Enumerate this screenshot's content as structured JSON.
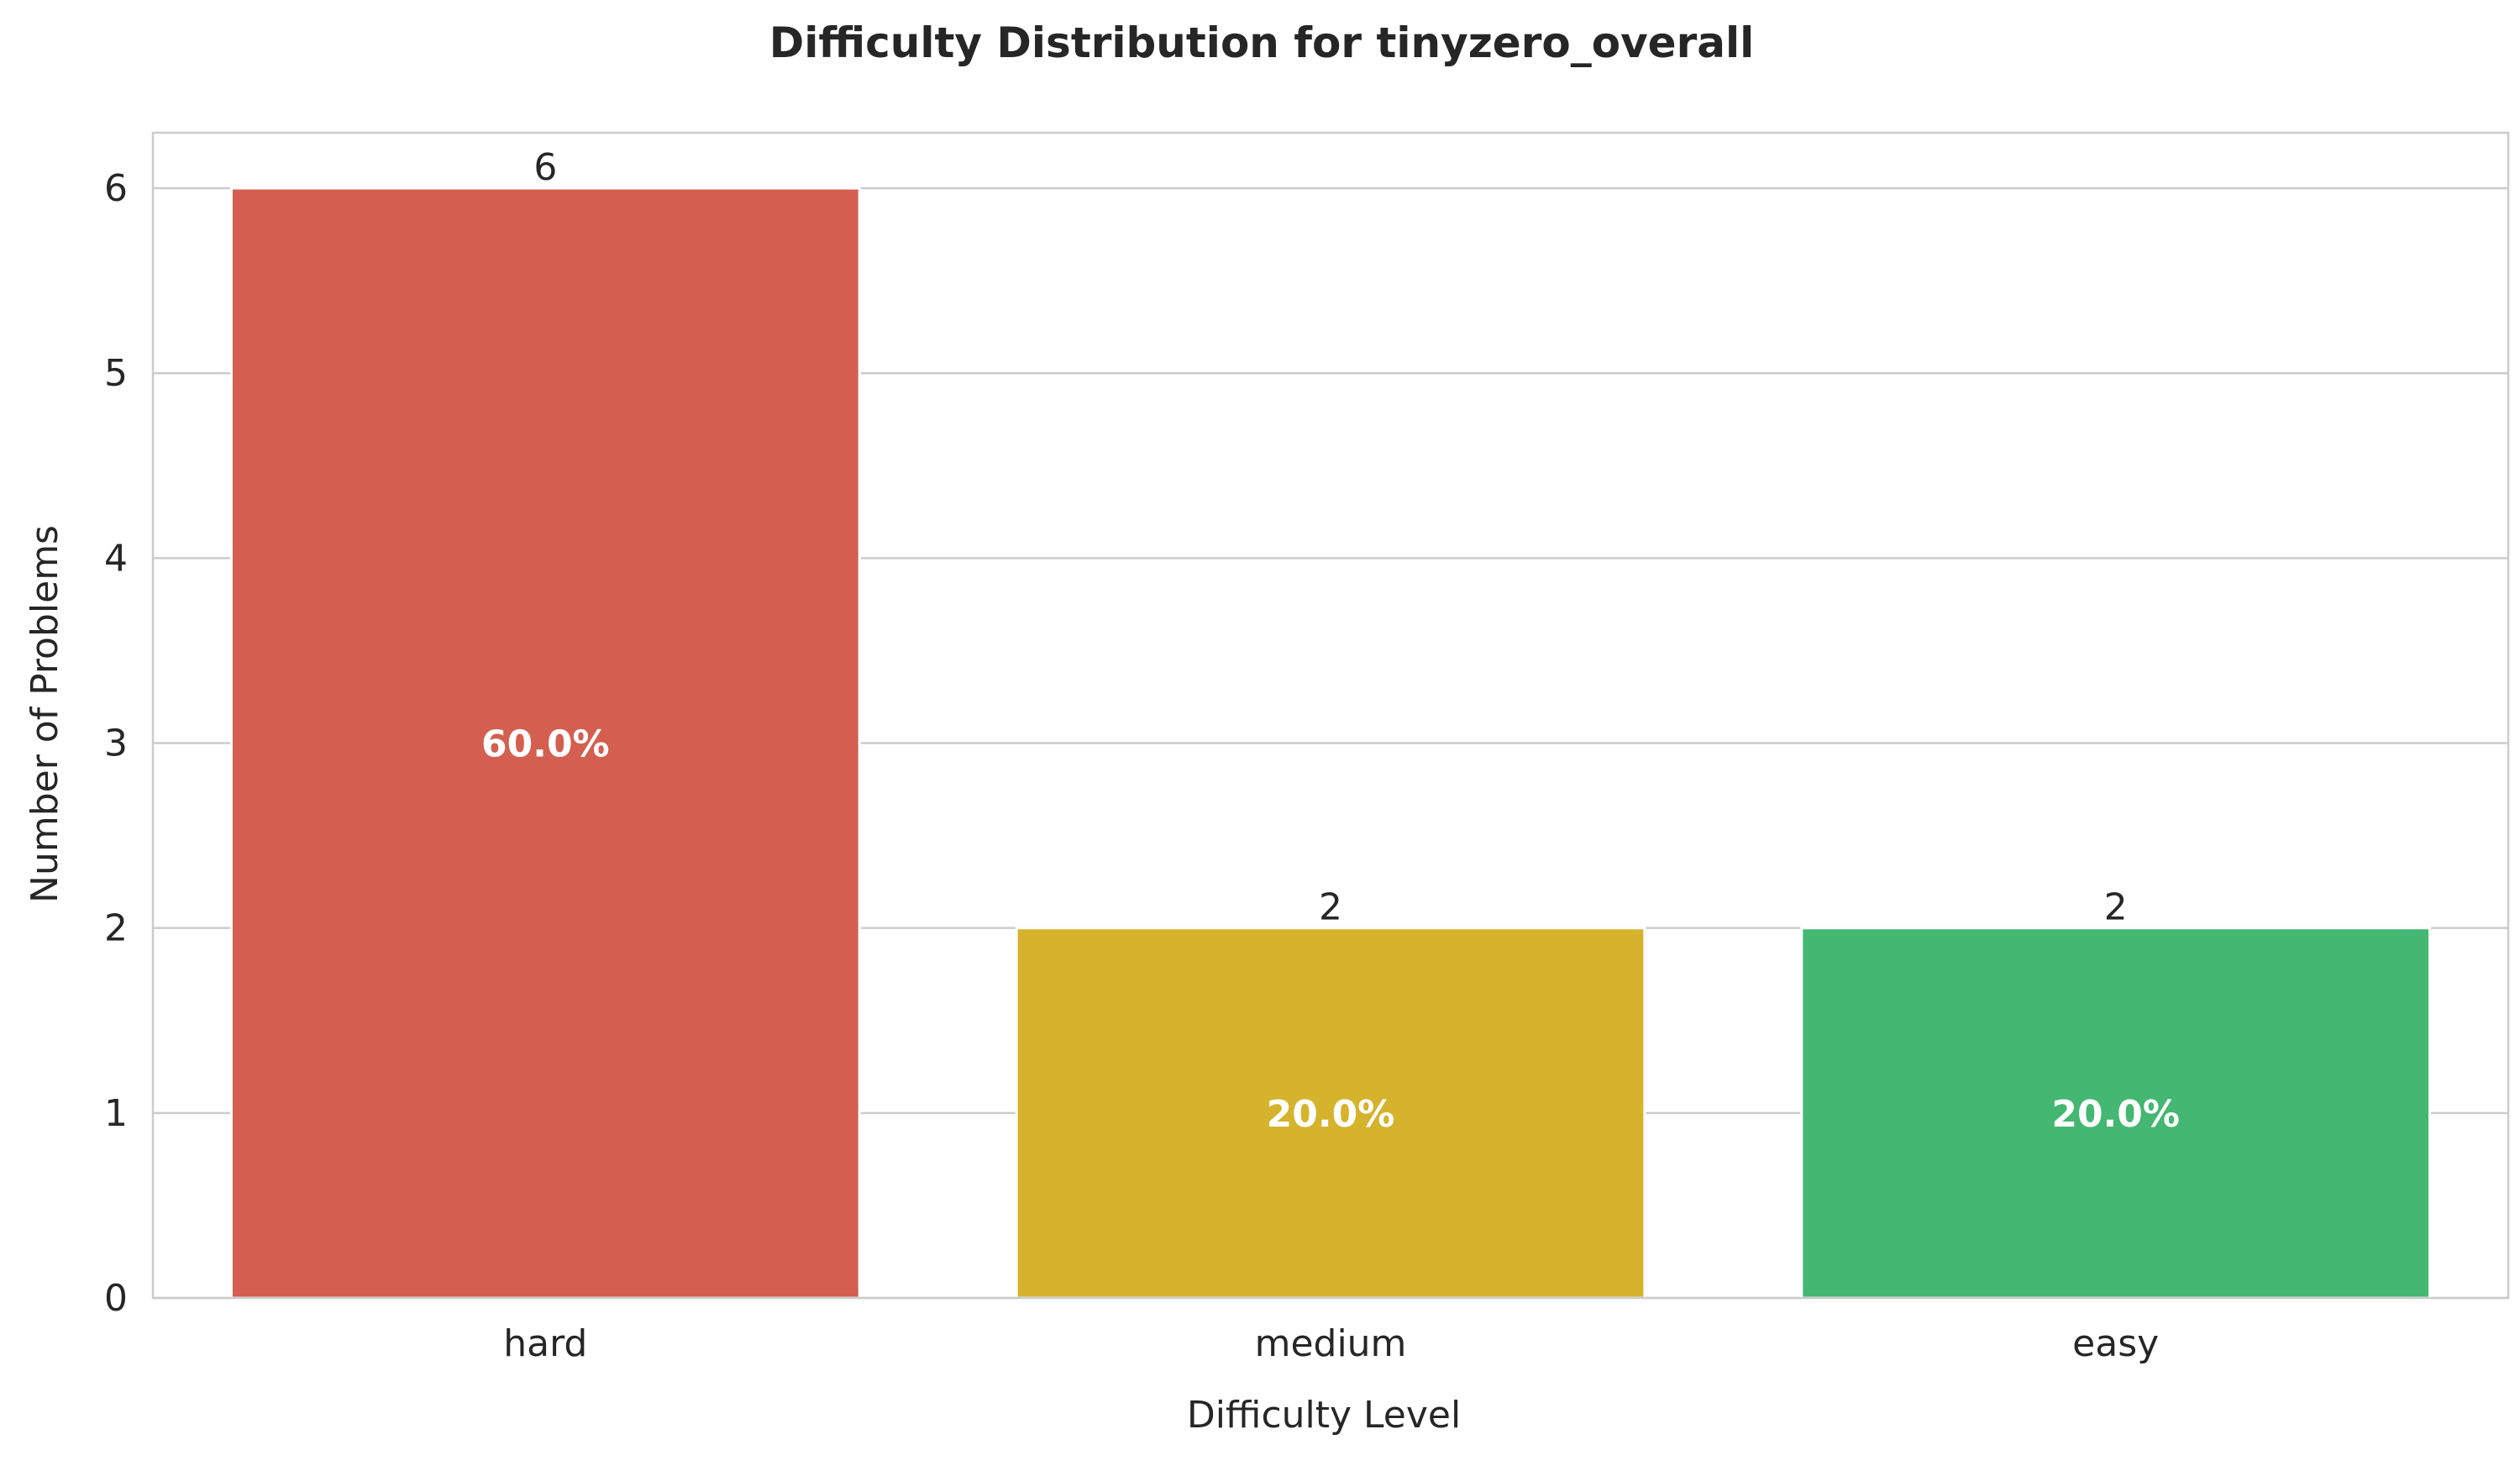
{
  "chart_data": {
    "type": "bar",
    "title": "Difficulty Distribution for tinyzero_overall",
    "xlabel": "Difficulty Level",
    "ylabel": "Number of Problems",
    "categories": [
      "hard",
      "medium",
      "easy"
    ],
    "values": [
      6,
      2,
      2
    ],
    "percent_labels": [
      "60.0%",
      "20.0%",
      "20.0%"
    ],
    "bar_colors": [
      "#d45f50",
      "#d5b32c",
      "#44b772"
    ],
    "ylim": [
      0,
      6.3
    ],
    "yticks": [
      0,
      1,
      2,
      3,
      4,
      5,
      6
    ],
    "grid": true,
    "legend": "none"
  },
  "colors": {
    "background": "#ffffff",
    "grid": "#cccccc",
    "spine": "#cccccc",
    "text": "#262626",
    "percent_text": "#ffffff"
  }
}
